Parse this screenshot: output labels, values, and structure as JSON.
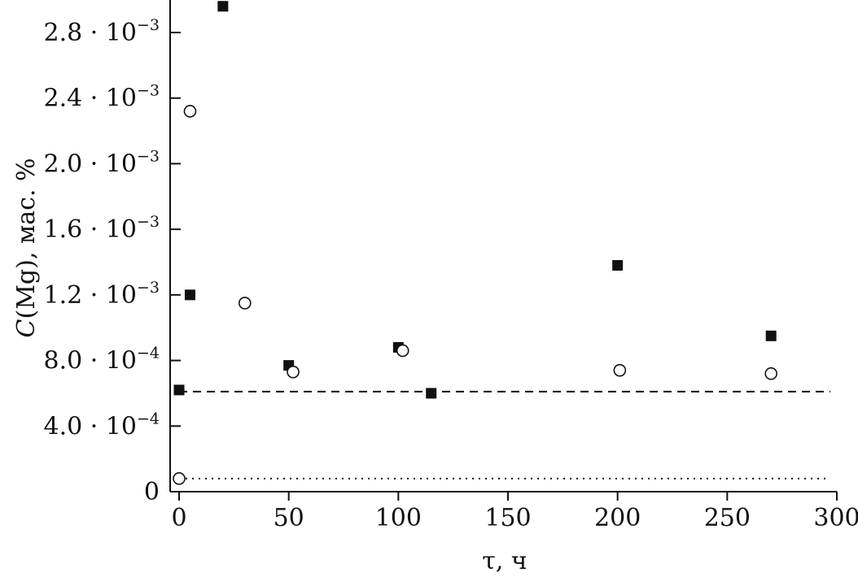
{
  "chart_data": {
    "type": "scatter",
    "xlabel": "τ, ч",
    "ylabel_var": "C",
    "ylabel_rest": "(Mg), мас. %",
    "xlim": [
      0,
      300
    ],
    "ylim": [
      0,
      0.003
    ],
    "grid": false,
    "x_ticks": [
      {
        "value": 0,
        "label": "0"
      },
      {
        "value": 50,
        "label": "50"
      },
      {
        "value": 100,
        "label": "100"
      },
      {
        "value": 150,
        "label": "150"
      },
      {
        "value": 200,
        "label": "200"
      },
      {
        "value": 250,
        "label": "250"
      },
      {
        "value": 300,
        "label": "300"
      }
    ],
    "y_ticks": [
      {
        "value": 0,
        "mantissa": "0",
        "exp": ""
      },
      {
        "value": 0.0004,
        "mantissa": "4.0 · 10",
        "exp": "−4"
      },
      {
        "value": 0.0008,
        "mantissa": "8.0 · 10",
        "exp": "−4"
      },
      {
        "value": 0.0012,
        "mantissa": "1.2 · 10",
        "exp": "−3"
      },
      {
        "value": 0.0016,
        "mantissa": "1.6 · 10",
        "exp": "−3"
      },
      {
        "value": 0.002,
        "mantissa": "2.0 · 10",
        "exp": "−3"
      },
      {
        "value": 0.0024,
        "mantissa": "2.4 · 10",
        "exp": "−3"
      },
      {
        "value": 0.0028,
        "mantissa": "2.8 · 10",
        "exp": "−3"
      }
    ],
    "series": [
      {
        "marker": "filled-square",
        "color": "#111111",
        "points": [
          {
            "x": 0,
            "y": 0.00062
          },
          {
            "x": 5,
            "y": 0.0012
          },
          {
            "x": 20,
            "y": 0.00296
          },
          {
            "x": 50,
            "y": 0.00077
          },
          {
            "x": 100,
            "y": 0.00088
          },
          {
            "x": 115,
            "y": 0.0006
          },
          {
            "x": 200,
            "y": 0.00138
          },
          {
            "x": 270,
            "y": 0.00095
          }
        ]
      },
      {
        "marker": "open-circle",
        "color": "#111111",
        "points": [
          {
            "x": 0,
            "y": 8e-05
          },
          {
            "x": 5,
            "y": 0.00232
          },
          {
            "x": 30,
            "y": 0.00115
          },
          {
            "x": 52,
            "y": 0.00073
          },
          {
            "x": 102,
            "y": 0.00086
          },
          {
            "x": 201,
            "y": 0.00074
          },
          {
            "x": 270,
            "y": 0.00072
          }
        ]
      }
    ],
    "reference_lines": [
      {
        "style": "dashed",
        "y": 0.00061
      },
      {
        "style": "dotted",
        "y": 8e-05
      }
    ]
  }
}
